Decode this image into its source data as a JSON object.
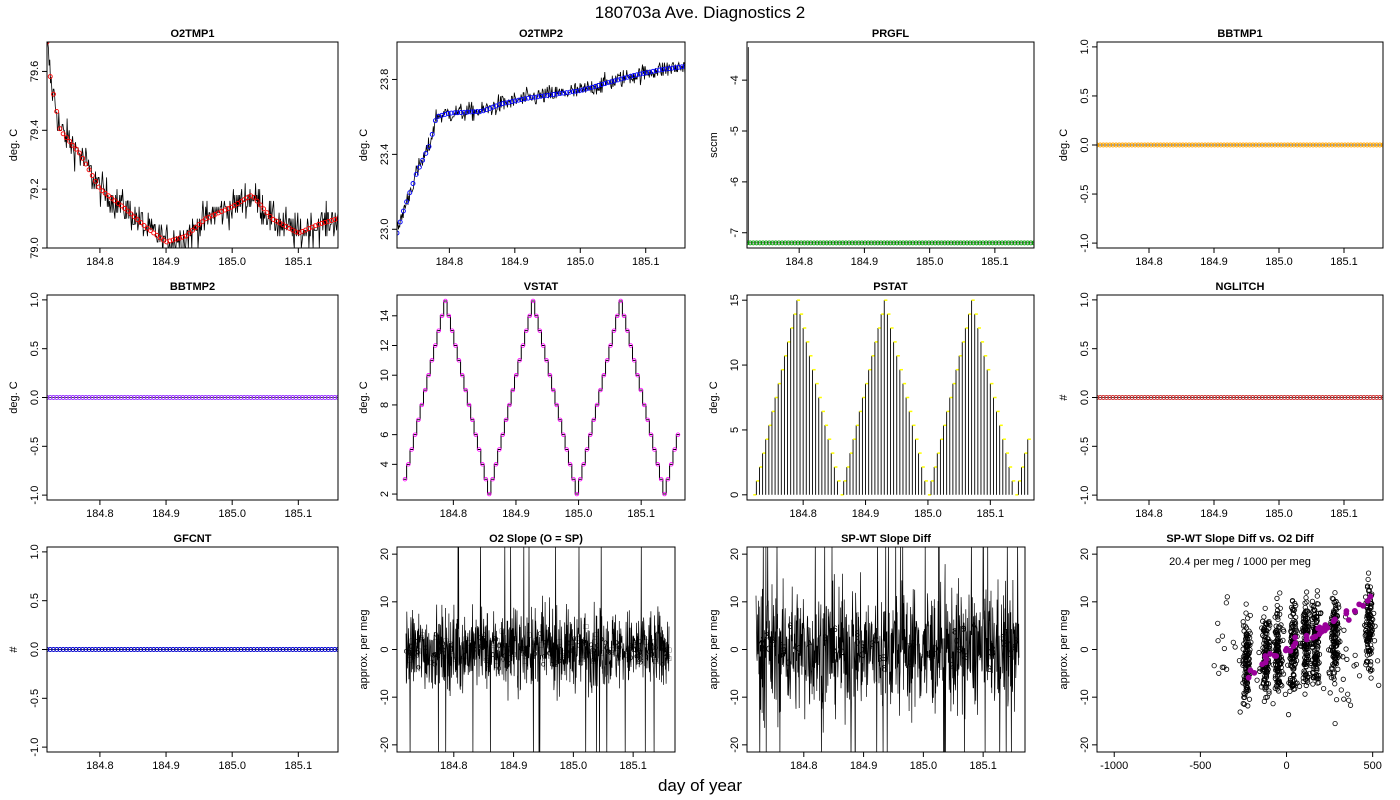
{
  "page": {
    "title": "180703a   Ave. Diagnostics 2",
    "xlabel": "day of year"
  },
  "chart_data": [
    {
      "type": "line",
      "title": "O2TMP1",
      "ylabel": "deg. C",
      "xlim": [
        184.72,
        185.16
      ],
      "ylim": [
        79.0,
        79.7
      ],
      "xticks": [
        "184.8",
        "184.9",
        "185.0",
        "185.1"
      ],
      "yticks": [
        "79.0",
        "79.2",
        "79.4",
        "79.6"
      ],
      "raw_color": "#000000",
      "avg_color": "#ff0000",
      "avg_marker": "circle",
      "trend": [
        [
          184.72,
          79.7
        ],
        [
          184.725,
          79.58
        ],
        [
          184.74,
          79.4
        ],
        [
          184.77,
          79.32
        ],
        [
          184.8,
          79.2
        ],
        [
          184.84,
          79.13
        ],
        [
          184.87,
          79.07
        ],
        [
          184.9,
          79.02
        ],
        [
          184.93,
          79.04
        ],
        [
          184.96,
          79.1
        ],
        [
          185.0,
          79.14
        ],
        [
          185.03,
          79.18
        ],
        [
          185.06,
          79.1
        ],
        [
          185.1,
          79.05
        ],
        [
          185.13,
          79.08
        ],
        [
          185.16,
          79.1
        ]
      ],
      "noise": 0.06,
      "quant": 0.02
    },
    {
      "type": "line",
      "title": "O2TMP2",
      "ylabel": "deg. C",
      "xlim": [
        184.72,
        185.16
      ],
      "ylim": [
        22.9,
        24.0
      ],
      "xticks": [
        "184.8",
        "184.9",
        "185.0",
        "185.1"
      ],
      "yticks": [
        "23.0",
        "23.4",
        "23.8"
      ],
      "raw_color": "#000000",
      "avg_color": "#0000ff",
      "avg_marker": "circle",
      "trend": [
        [
          184.72,
          22.98
        ],
        [
          184.73,
          23.1
        ],
        [
          184.75,
          23.3
        ],
        [
          184.77,
          23.45
        ],
        [
          184.78,
          23.6
        ],
        [
          184.8,
          23.62
        ],
        [
          184.85,
          23.63
        ],
        [
          184.88,
          23.67
        ],
        [
          184.92,
          23.7
        ],
        [
          184.96,
          23.72
        ],
        [
          185.0,
          23.74
        ],
        [
          185.04,
          23.78
        ],
        [
          185.08,
          23.82
        ],
        [
          185.12,
          23.85
        ],
        [
          185.16,
          23.87
        ]
      ],
      "noise": 0.05,
      "quant": 0.01
    },
    {
      "type": "line",
      "title": "PRGFL",
      "ylabel": "sccm",
      "xlim": [
        184.72,
        185.16
      ],
      "ylim": [
        -7.3,
        -3.25
      ],
      "xticks": [
        "184.8",
        "184.9",
        "185.0",
        "185.1"
      ],
      "yticks": [
        "-7",
        "-6",
        "-5",
        "-4"
      ],
      "raw_color": "#000000",
      "avg_color": "#009900",
      "avg_marker": "circle",
      "trend": [
        [
          184.72,
          -7.2
        ],
        [
          185.16,
          -7.2
        ]
      ],
      "noise": 0,
      "spike": [
        184.722,
        -3.35,
        -7.2
      ]
    },
    {
      "type": "line",
      "title": "BBTMP1",
      "ylabel": "deg. C",
      "xlim": [
        184.72,
        185.16
      ],
      "ylim": [
        -1.05,
        1.05
      ],
      "xticks": [
        "184.8",
        "184.9",
        "185.0",
        "185.1"
      ],
      "yticks": [
        "-1.0",
        "-0.5",
        "0.0",
        "0.5",
        "1.0"
      ],
      "raw_color": "#000000",
      "avg_color": "#ffa500",
      "avg_marker": "circle",
      "trend": [
        [
          184.72,
          0
        ],
        [
          185.16,
          0
        ]
      ],
      "noise": 0
    },
    {
      "type": "line",
      "title": "BBTMP2",
      "ylabel": "deg. C",
      "xlim": [
        184.72,
        185.16
      ],
      "ylim": [
        -1.05,
        1.05
      ],
      "xticks": [
        "184.8",
        "184.9",
        "185.0",
        "185.1"
      ],
      "yticks": [
        "-1.0",
        "-0.5",
        "0.0",
        "0.5",
        "1.0"
      ],
      "raw_color": "#000000",
      "avg_color": "#9933ff",
      "avg_marker": "circle",
      "trend": [
        [
          184.72,
          0
        ],
        [
          185.16,
          0
        ]
      ],
      "noise": 0
    },
    {
      "type": "step",
      "title": "VSTAT",
      "ylabel": "deg. C",
      "xlim": [
        184.71,
        185.17
      ],
      "ylim": [
        1.6,
        15.4
      ],
      "xticks": [
        "184.8",
        "184.9",
        "185.0",
        "185.1"
      ],
      "yticks": [
        "2",
        "4",
        "6",
        "8",
        "10",
        "12",
        "14"
      ],
      "raw_color": "#000000",
      "avg_color": "#ff00ff",
      "cycle_start": 184.72,
      "period": 0.14,
      "vmin": 2,
      "vmax": 15,
      "steps_per_half": 13
    },
    {
      "type": "stem",
      "title": "PSTAT",
      "ylabel": "deg. C",
      "xlim": [
        184.71,
        185.17
      ],
      "ylim": [
        -0.4,
        15.4
      ],
      "xticks": [
        "184.8",
        "184.9",
        "185.0",
        "185.1"
      ],
      "yticks": [
        "0",
        "5",
        "10",
        "15"
      ],
      "raw_color": "#000000",
      "avg_color": "#ffff00",
      "cycle_start": 184.72,
      "period": 0.14,
      "vmin": 0,
      "vmax": 15,
      "steps_per_half": 14
    },
    {
      "type": "line",
      "title": "NGLITCH",
      "ylabel": "#",
      "xlim": [
        184.72,
        185.16
      ],
      "ylim": [
        -1.05,
        1.05
      ],
      "xticks": [
        "184.8",
        "184.9",
        "185.0",
        "185.1"
      ],
      "yticks": [
        "-1.0",
        "-0.5",
        "0.0",
        "0.5",
        "1.0"
      ],
      "raw_color": "#000000",
      "avg_color": "#cc3333",
      "avg_marker": "circle",
      "trend": [
        [
          184.72,
          0
        ],
        [
          185.16,
          0
        ]
      ],
      "noise": 0
    },
    {
      "type": "line",
      "title": "GFCNT",
      "ylabel": "#",
      "xlim": [
        184.72,
        185.16
      ],
      "ylim": [
        -1.05,
        1.05
      ],
      "xticks": [
        "184.8",
        "184.9",
        "185.0",
        "185.1"
      ],
      "yticks": [
        "-1.0",
        "-0.5",
        "0.0",
        "0.5",
        "1.0"
      ],
      "raw_color": "#000000",
      "avg_color": "#0000cc",
      "avg_marker": "circle",
      "trend": [
        [
          184.72,
          0
        ],
        [
          185.16,
          0
        ]
      ],
      "noise": 0
    },
    {
      "type": "noise",
      "title": "O2 Slope (O = SP)",
      "ylabel": "approx. per meg",
      "xlim": [
        184.705,
        185.17
      ],
      "ylim": [
        -21.5,
        21.5
      ],
      "xticks": [
        "184.8",
        "184.9",
        "185.0",
        "185.1"
      ],
      "yticks": [
        "-20",
        "-10",
        "0",
        "10",
        "20"
      ],
      "raw_color": "#000000",
      "avg_color": "#00cc00",
      "marker_chars": [
        "o",
        "□"
      ],
      "band": 14
    },
    {
      "type": "noise",
      "title": "SP-WT Slope Diff",
      "ylabel": "approx. per meg",
      "xlim": [
        184.705,
        185.17
      ],
      "ylim": [
        -21.5,
        21.5
      ],
      "xticks": [
        "184.8",
        "184.9",
        "185.0",
        "185.1"
      ],
      "yticks": [
        "-20",
        "-10",
        "0",
        "10",
        "20"
      ],
      "raw_color": "#000000",
      "avg_color": "#ff8000",
      "marker_chars": [
        "0",
        "2",
        "3",
        "4",
        "5",
        "6",
        "7",
        "8",
        "9",
        "A",
        "B",
        "C"
      ],
      "band": 22
    },
    {
      "type": "scatter",
      "title": "SP-WT Slope Diff vs. O2 Diff",
      "ylabel": "approx. per meg",
      "xlim": [
        -1100,
        560
      ],
      "ylim": [
        -21.5,
        21.5
      ],
      "xticks": [
        "-1000",
        "-500",
        "0",
        "500"
      ],
      "yticks": [
        "-20",
        "-10",
        "0",
        "10",
        "20"
      ],
      "point_color": "#000000",
      "fit_color": "#990099",
      "annotation": "20.4 per meg / 1000 per meg",
      "fit_slope": 0.0204,
      "clusters": [
        -230,
        -120,
        -50,
        40,
        110,
        170,
        280,
        480
      ]
    }
  ]
}
